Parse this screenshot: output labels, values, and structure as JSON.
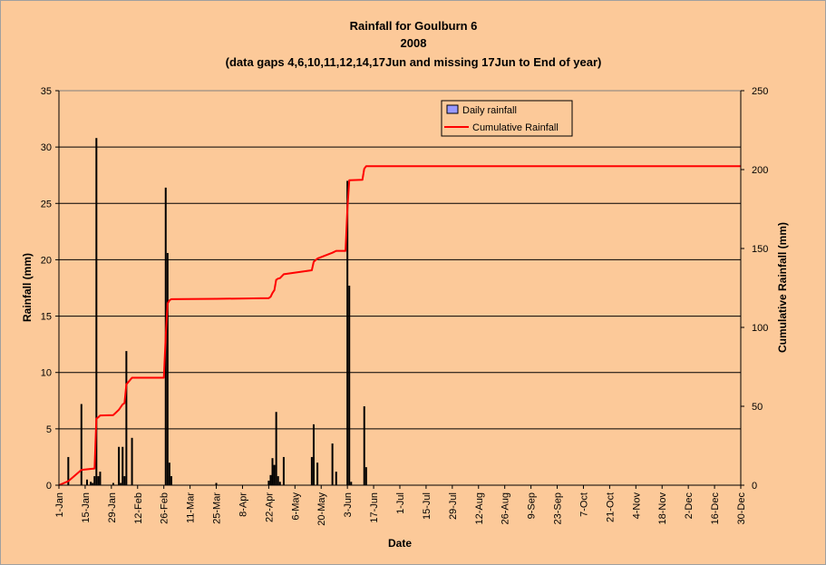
{
  "chart_data": {
    "type": "bar",
    "title": "Rainfall for Goulburn 6",
    "subtitle": "2008",
    "note": "(data gaps 4,6,10,11,12,14,17Jun and missing 17Jun to End of year)",
    "xlabel": "Date",
    "ylabel": "Rainfall (mm)",
    "y2label": "Cumulative Rainfall (mm)",
    "ylim": [
      0,
      35
    ],
    "y2lim": [
      0,
      250
    ],
    "yticks": [
      "0",
      "5",
      "10",
      "15",
      "20",
      "25",
      "30",
      "35"
    ],
    "y2ticks": [
      "0",
      "50",
      "100",
      "150",
      "200",
      "250"
    ],
    "xlim_day_of_year": [
      1,
      365
    ],
    "xtick_days": [
      1,
      15,
      29,
      43,
      57,
      71,
      85,
      99,
      113,
      127,
      141,
      155,
      169,
      183,
      197,
      211,
      225,
      239,
      253,
      267,
      281,
      295,
      309,
      323,
      337,
      351,
      365
    ],
    "xticks": [
      "1-Jan",
      "15-Jan",
      "29-Jan",
      "12-Feb",
      "26-Feb",
      "11-Mar",
      "25-Mar",
      "8-Apr",
      "22-Apr",
      "6-May",
      "20-May",
      "3-Jun",
      "17-Jun",
      "1-Jul",
      "15-Jul",
      "29-Jul",
      "12-Aug",
      "26-Aug",
      "9-Sep",
      "23-Sep",
      "7-Oct",
      "21-Oct",
      "4-Nov",
      "18-Nov",
      "2-Dec",
      "16-Dec",
      "30-Dec"
    ],
    "grid": true,
    "legend": {
      "position": "top-right",
      "entries": [
        "Daily rainfall",
        "Cumulative Rainfall"
      ]
    },
    "series": [
      {
        "name": "Daily rainfall",
        "type": "bar",
        "axis": "left",
        "color": "#9999ff",
        "day_of_year": [
          6,
          13,
          16,
          18,
          19,
          20,
          21,
          22,
          23,
          30,
          33,
          34,
          35,
          36,
          37,
          40,
          58,
          59,
          60,
          61,
          85,
          113,
          114,
          115,
          116,
          117,
          118,
          119,
          121,
          136,
          137,
          139,
          147,
          149,
          155,
          156,
          157,
          164,
          165
        ],
        "values": [
          2.5,
          7.2,
          0.5,
          0.3,
          0.2,
          0.8,
          30.8,
          0.8,
          1.2,
          0.2,
          3.4,
          0.2,
          3.4,
          0.8,
          11.9,
          4.2,
          26.4,
          20.6,
          2.0,
          0.8,
          0.2,
          0.4,
          0.9,
          2.4,
          1.8,
          6.5,
          0.8,
          0.3,
          2.5,
          2.5,
          5.4,
          2.0,
          3.7,
          1.2,
          27.0,
          17.7,
          0.3,
          7.0,
          1.6
        ]
      },
      {
        "name": "Cumulative Rainfall",
        "type": "line",
        "axis": "right",
        "color": "#ff0000",
        "x_day_of_year": [
          1,
          6,
          13,
          20,
          21,
          22,
          23,
          30,
          33,
          35,
          36,
          37,
          40,
          57,
          58,
          59,
          60,
          61,
          85,
          113,
          114,
          115,
          116,
          117,
          118,
          119,
          121,
          136,
          137,
          139,
          147,
          149,
          154,
          155,
          156,
          163,
          164,
          165,
          166,
          365
        ],
        "y": [
          0,
          2.5,
          9.7,
          10.6,
          42.2,
          43.0,
          44.2,
          44.4,
          47.8,
          51.2,
          52.0,
          63.9,
          68.1,
          68.1,
          94.5,
          115.1,
          117.1,
          117.9,
          118.1,
          118.5,
          119.4,
          121.8,
          123.6,
          130.1,
          130.9,
          131.2,
          133.7,
          136.2,
          141.6,
          143.6,
          147.3,
          148.5,
          148.5,
          175.5,
          193.2,
          193.5,
          200.5,
          202.1,
          202.1,
          202.1
        ]
      }
    ]
  }
}
